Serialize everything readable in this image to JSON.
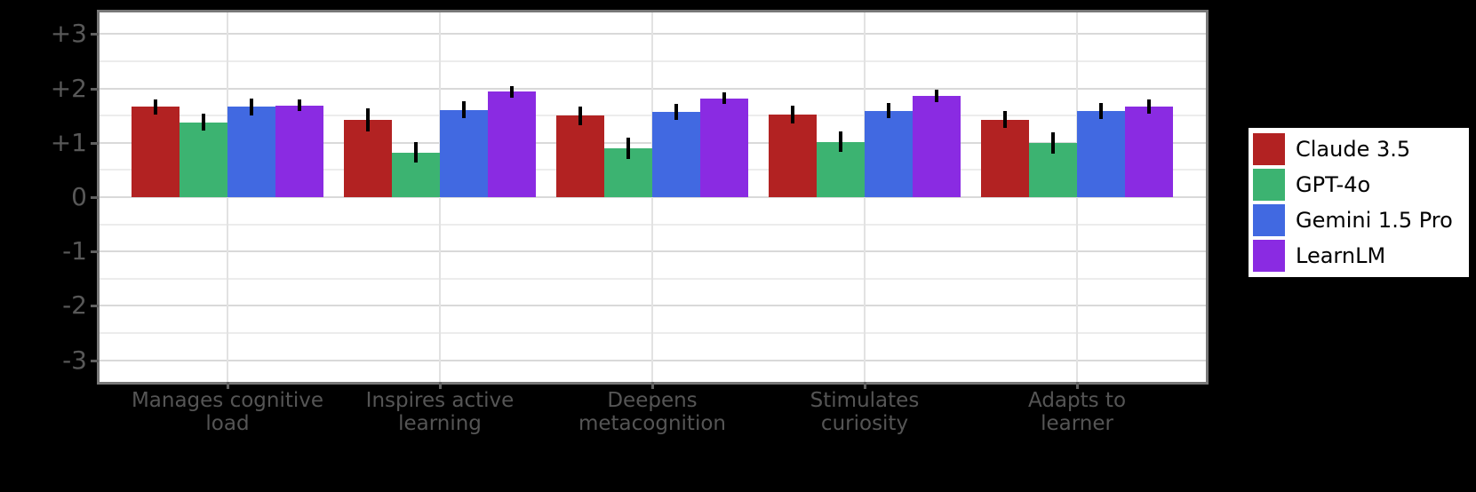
{
  "chart_data": {
    "type": "bar",
    "title": "",
    "xlabel": "",
    "ylabel": "",
    "categories": [
      "Manages cognitive\nload",
      "Inspires active\nlearning",
      "Deepens\nmetacognition",
      "Stimulates\ncuriosity",
      "Adapts to\nlearner"
    ],
    "series": [
      {
        "name": "Claude 3.5",
        "color": "#b22222",
        "values": [
          1.66,
          1.42,
          1.5,
          1.52,
          1.43
        ],
        "errors": [
          0.14,
          0.21,
          0.17,
          0.16,
          0.16
        ]
      },
      {
        "name": "GPT-4o",
        "color": "#3cb371",
        "values": [
          1.38,
          0.82,
          0.9,
          1.02,
          1.0
        ],
        "errors": [
          0.15,
          0.19,
          0.2,
          0.19,
          0.2
        ]
      },
      {
        "name": "Gemini 1.5 Pro",
        "color": "#4169e1",
        "values": [
          1.66,
          1.61,
          1.57,
          1.59,
          1.59
        ],
        "errors": [
          0.15,
          0.16,
          0.14,
          0.14,
          0.15
        ]
      },
      {
        "name": "LearnLM",
        "color": "#8a2be2",
        "values": [
          1.69,
          1.94,
          1.82,
          1.86,
          1.66
        ],
        "errors": [
          0.11,
          0.11,
          0.11,
          0.11,
          0.13
        ]
      }
    ],
    "ylim": [
      -3.4,
      3.4
    ],
    "yticks": {
      "values": [
        3,
        2,
        1,
        0,
        -1,
        -2,
        -3
      ],
      "labels": [
        "+3",
        "+2",
        "+1",
        "0",
        "-1",
        "-2",
        "-3"
      ]
    },
    "grid": true,
    "error_bars": true,
    "legend_position": "right",
    "colors": {
      "figure_background": "#000000",
      "plot_background": "#ffffff",
      "plot_border": "#787878",
      "grid_major": "#d9d9d9",
      "grid_minor": "#ececec",
      "tick_label": "#565656",
      "error_bar": "#000000",
      "legend_background": "#ffffff",
      "legend_border": "#000000",
      "legend_text": "#000000"
    }
  }
}
